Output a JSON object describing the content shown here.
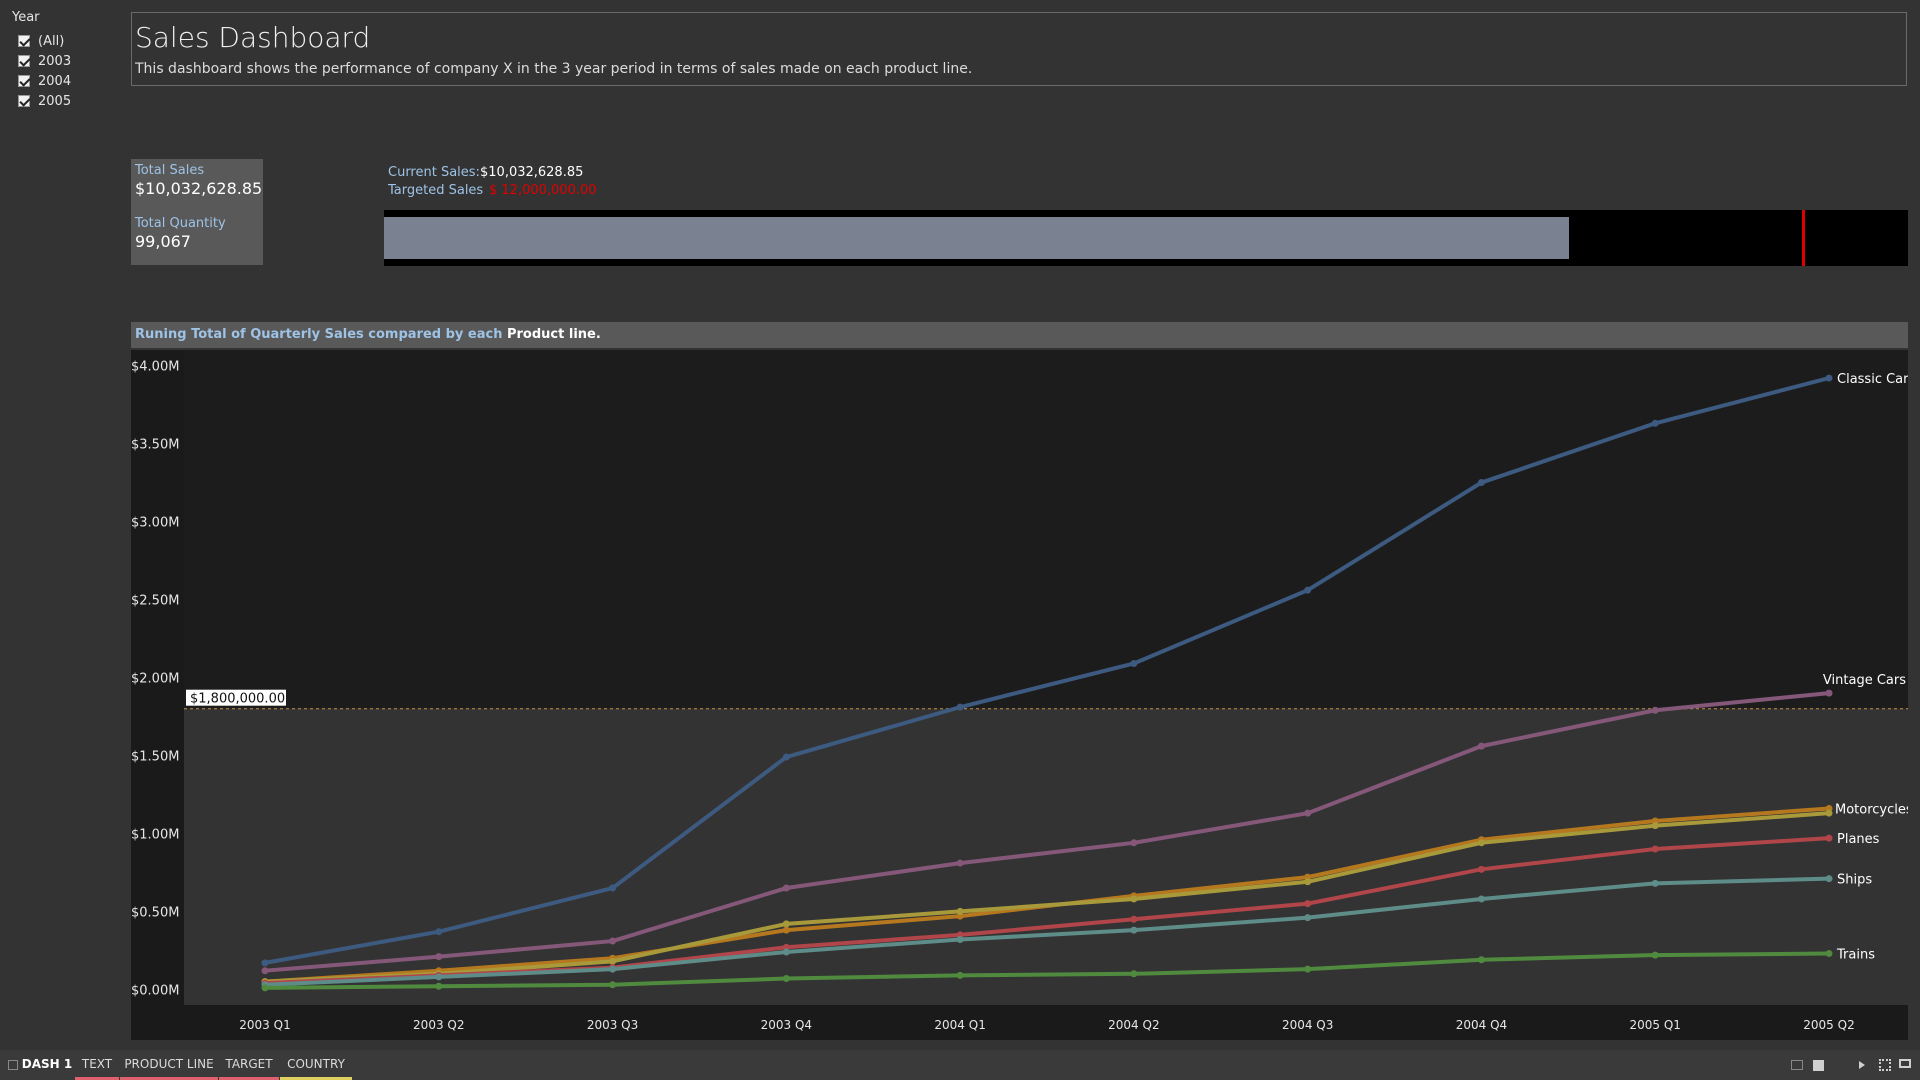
{
  "filter": {
    "title": "Year",
    "options": [
      "(All)",
      "2003",
      "2004",
      "2005"
    ]
  },
  "header": {
    "title": "Sales Dashboard",
    "subtitle": "This dashboard shows the performance of company X in the 3 year period in terms of sales made on each product line."
  },
  "kpi": {
    "total_sales_label": "Total Sales",
    "total_sales_value": "$10,032,628.85",
    "total_quantity_label": "Total Quantity",
    "total_quantity_value": "99,067"
  },
  "target": {
    "current_label": "Current Sales:",
    "current_value": "$10,032,628.85",
    "targeted_label": "Targeted Sales",
    "targeted_value": "$ 12,000,000.00",
    "current_number": 10032628.85,
    "targeted_number": 12000000,
    "axis_max": 12900000,
    "fill_color": "#7a8190",
    "marker_color": "#e00000"
  },
  "chart": {
    "title_part1": "Runing Total of Quarterly Sales compared by each",
    "title_part2": "Product line."
  },
  "chart_data": {
    "type": "line",
    "x": [
      "2003 Q1",
      "2003 Q2",
      "2003 Q3",
      "2003 Q4",
      "2004 Q1",
      "2004 Q2",
      "2004 Q3",
      "2004 Q4",
      "2005 Q1",
      "2005 Q2"
    ],
    "y_ticks": [
      "$0.00M",
      "$0.50M",
      "$1.00M",
      "$1.50M",
      "$2.00M",
      "$2.50M",
      "$3.00M",
      "$3.50M",
      "$4.00M"
    ],
    "ylim": [
      -0.1,
      4.1
    ],
    "reference_line": {
      "value": 1.8,
      "label": "$1,800,000.00"
    },
    "series": [
      {
        "name": "Classic Cars",
        "color": "#3d5a80",
        "values": [
          0.17,
          0.37,
          0.65,
          1.49,
          1.81,
          2.09,
          2.56,
          3.25,
          3.63,
          3.92
        ]
      },
      {
        "name": "Vintage Cars",
        "color": "#85587a",
        "values": [
          0.12,
          0.21,
          0.31,
          0.65,
          0.81,
          0.94,
          1.13,
          1.56,
          1.79,
          1.9
        ]
      },
      {
        "name": "Motorcycles",
        "color": "#b5781f",
        "values": [
          0.05,
          0.12,
          0.2,
          0.38,
          0.47,
          0.6,
          0.72,
          0.96,
          1.08,
          1.16
        ]
      },
      {
        "name": "",
        "color": "#a89a3a",
        "values": [
          0.05,
          0.1,
          0.18,
          0.42,
          0.5,
          0.58,
          0.69,
          0.94,
          1.05,
          1.13
        ]
      },
      {
        "name": "Planes",
        "color": "#b0454a",
        "values": [
          0.04,
          0.09,
          0.14,
          0.27,
          0.35,
          0.45,
          0.55,
          0.77,
          0.9,
          0.97
        ]
      },
      {
        "name": "Ships",
        "color": "#5e8c88",
        "values": [
          0.03,
          0.08,
          0.13,
          0.24,
          0.32,
          0.38,
          0.46,
          0.58,
          0.68,
          0.71
        ]
      },
      {
        "name": "Trains",
        "color": "#4f8a3e",
        "values": [
          0.01,
          0.02,
          0.03,
          0.07,
          0.09,
          0.1,
          0.13,
          0.19,
          0.22,
          0.23
        ]
      }
    ]
  },
  "tabs": [
    {
      "label": "DASH 1",
      "color": ""
    },
    {
      "label": "TEXT",
      "color": "#e06070"
    },
    {
      "label": "PRODUCT LINE",
      "color": "#e06070"
    },
    {
      "label": "TARGET",
      "color": "#e06070"
    },
    {
      "label": "COUNTRY",
      "color": "#e0d060"
    }
  ]
}
